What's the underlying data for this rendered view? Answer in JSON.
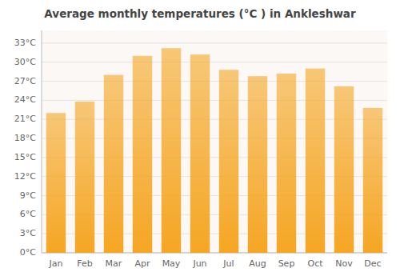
{
  "chart_data": {
    "type": "bar",
    "title": "Average monthly temperatures (°C ) in Ankleshwar",
    "categories": [
      "Jan",
      "Feb",
      "Mar",
      "Apr",
      "May",
      "Jun",
      "Jul",
      "Aug",
      "Sep",
      "Oct",
      "Nov",
      "Dec"
    ],
    "values": [
      22.0,
      23.8,
      28.0,
      31.0,
      32.2,
      31.2,
      28.8,
      27.8,
      28.2,
      29.0,
      26.2,
      22.8
    ],
    "color": "#F5A623",
    "ylim": [
      0,
      35
    ],
    "yticks": [
      {
        "value": 0,
        "label": "0°C"
      },
      {
        "value": 3,
        "label": "3°C"
      },
      {
        "value": 6,
        "label": "6°C"
      },
      {
        "value": 9,
        "label": "9°C"
      },
      {
        "value": 12,
        "label": "12°C"
      },
      {
        "value": 15,
        "label": "15°C"
      },
      {
        "value": 18,
        "label": "18°C"
      },
      {
        "value": 21,
        "label": "21°C"
      },
      {
        "value": 24,
        "label": "24°C"
      },
      {
        "value": 27,
        "label": "27°C"
      },
      {
        "value": 30,
        "label": "30°C"
      },
      {
        "value": 33,
        "label": "33°C"
      }
    ],
    "grid": true
  }
}
